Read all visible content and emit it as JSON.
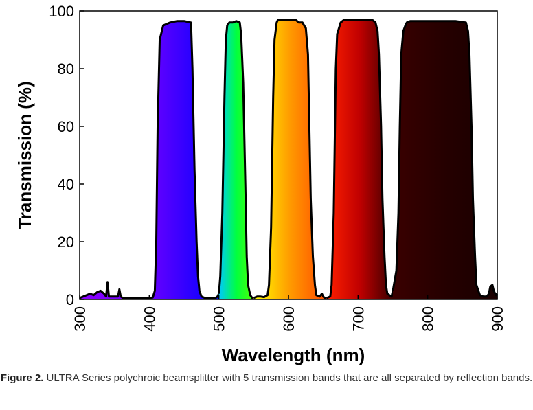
{
  "caption": {
    "label": "Figure 2.",
    "text": "ULTRA Series polychroic beamsplitter with 5 transmission bands that are all separated by reflection bands."
  },
  "chart_data": {
    "type": "area",
    "title": "",
    "xlabel": "Wavelength (nm)",
    "ylabel": "Transmission (%)",
    "xlim": [
      300,
      900
    ],
    "ylim": [
      0,
      100
    ],
    "xticks": [
      300,
      400,
      500,
      600,
      700,
      800,
      900
    ],
    "yticks": [
      0,
      20,
      40,
      60,
      80,
      100
    ],
    "grid": false,
    "legend": "none",
    "bands": [
      {
        "x": [
          300,
          305,
          310,
          315,
          320,
          325,
          330,
          335,
          338,
          340,
          342,
          345,
          350,
          355,
          357,
          359,
          362,
          370,
          380,
          390,
          400,
          405,
          408,
          410,
          412,
          415,
          420,
          425,
          430,
          440,
          450,
          460,
          462,
          465,
          468,
          470,
          472,
          475,
          480,
          490,
          495,
          498,
          500
        ],
        "y": [
          0.5,
          1,
          1.5,
          2,
          1.5,
          2.5,
          3,
          2,
          1,
          6,
          1,
          1,
          1,
          1,
          3.5,
          1,
          0.5,
          0.5,
          0.5,
          0.5,
          0.5,
          0.7,
          3,
          20,
          60,
          90,
          95,
          95.5,
          96,
          96.5,
          96.5,
          96,
          80,
          45,
          20,
          8,
          3,
          1,
          0.5,
          0.5,
          0.5,
          1,
          2
        ],
        "colors": [
          "#8b00ff",
          "#6a00ff",
          "#0000ff"
        ]
      },
      {
        "x": [
          500,
          502,
          505,
          508,
          510,
          512,
          515,
          520,
          525,
          530,
          532,
          535,
          538,
          540,
          542,
          545,
          548,
          550
        ],
        "y": [
          2,
          8,
          30,
          70,
          90,
          95,
          96,
          96,
          96.5,
          96,
          92,
          75,
          40,
          15,
          5,
          1.5,
          0.5,
          0.5
        ],
        "colors": [
          "#00c8ff",
          "#00ff40",
          "#50ff00"
        ]
      },
      {
        "x": [
          550,
          555,
          560,
          565,
          570,
          572,
          575,
          578,
          580,
          583,
          585,
          590,
          600,
          610,
          615,
          620,
          625,
          628,
          630,
          632,
          635,
          638,
          640,
          645,
          648,
          650,
          652,
          655
        ],
        "y": [
          0.5,
          1,
          1,
          0.8,
          1.5,
          5,
          25,
          70,
          90,
          96,
          97,
          97,
          97,
          97,
          96,
          96,
          94,
          85,
          60,
          35,
          15,
          5,
          1.5,
          1,
          2,
          1,
          0.5,
          0.5
        ],
        "colors": [
          "#ffff00",
          "#ff9a00",
          "#ff4a00"
        ]
      },
      {
        "x": [
          655,
          660,
          662,
          665,
          668,
          670,
          675,
          680,
          690,
          700,
          710,
          720,
          725,
          728,
          730,
          733,
          735,
          738,
          740,
          742,
          745,
          748,
          750
        ],
        "y": [
          0.5,
          1,
          5,
          30,
          80,
          92,
          96,
          97,
          97,
          97,
          97,
          97,
          96,
          93,
          85,
          60,
          35,
          15,
          5,
          2,
          1.5,
          1,
          3
        ],
        "colors": [
          "#ff2000",
          "#c00000",
          "#3a0000"
        ]
      },
      {
        "x": [
          750,
          755,
          758,
          760,
          762,
          765,
          768,
          770,
          775,
          780,
          790,
          800,
          820,
          840,
          855,
          858,
          860,
          863,
          865,
          868,
          870,
          875,
          880,
          885,
          888,
          890,
          893,
          895,
          898,
          900
        ],
        "y": [
          3,
          10,
          30,
          60,
          85,
          93,
          95,
          96,
          96.5,
          96.5,
          96.5,
          96.5,
          96.5,
          96.5,
          96,
          93,
          85,
          60,
          35,
          15,
          5,
          1.5,
          1,
          1,
          2,
          4.5,
          5,
          3,
          1.5,
          2
        ],
        "colors": [
          "#3a0000",
          "#250000",
          "#1a0000"
        ]
      }
    ]
  }
}
